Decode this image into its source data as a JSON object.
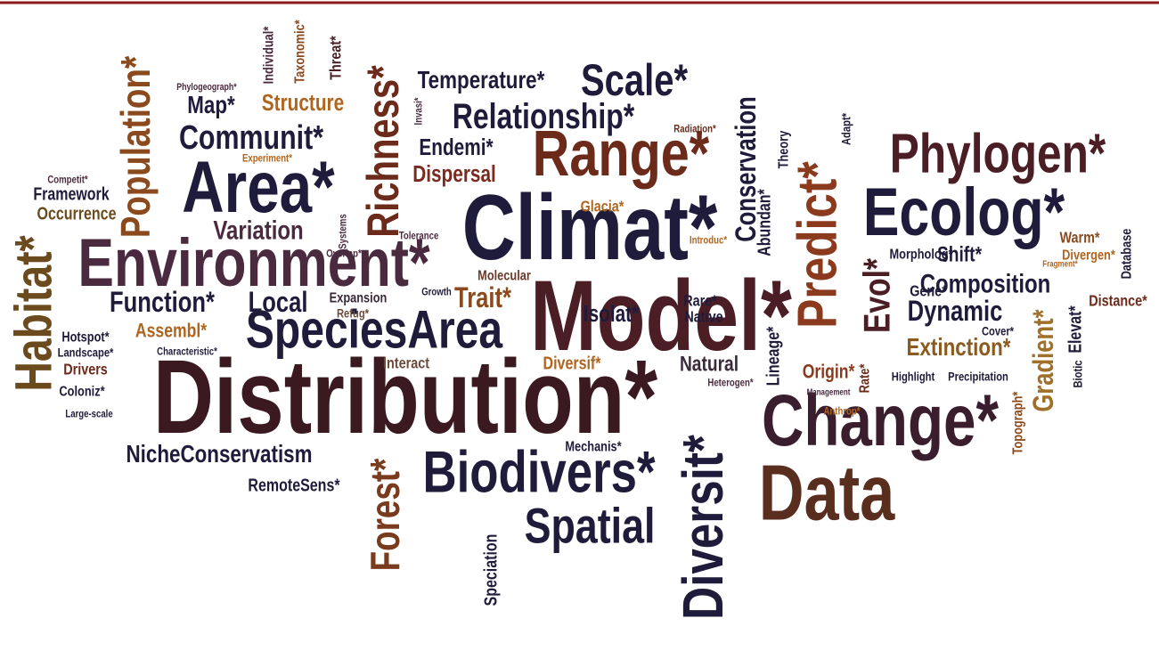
{
  "words": [
    "Distribution*",
    "Climat*",
    "Model*",
    "Environment*",
    "SpeciesArea",
    "Area*",
    "Range*",
    "Phylogen*",
    "Ecolog*",
    "Change*",
    "Data",
    "Biodivers*",
    "Spatial",
    "Diversit*",
    "Predict*",
    "Habitat*",
    "Population*",
    "Richness*",
    "Forest*",
    "Conservation",
    "Evol*",
    "Gradient*",
    "Scale*",
    "Temperature*",
    "Relationship*",
    "Communit*",
    "Map*",
    "Structure",
    "Endemi*",
    "Dispersal",
    "Variation",
    "Function*",
    "Local",
    "Trait*",
    "Isolat*",
    "Composition",
    "Dynamic",
    "Extinction*",
    "Shift*",
    "NicheConservatism",
    "RemoteSens*",
    "Mechanis*",
    "Natural",
    "Origin*",
    "Interact",
    "Diversif*",
    "Assembl*",
    "Framework",
    "Occurrence",
    "Hotspot*",
    "Landscape*",
    "Drivers",
    "Coloniz*",
    "Large-scale",
    "Competit*",
    "Speciation",
    "Lineage*",
    "Abundan*",
    "Topograph*",
    "Elevat*",
    "Database",
    "Distance*",
    "Warm*",
    "Divergen*",
    "Gene*",
    "Morpholog*",
    "Rare*",
    "Native",
    "Molecular",
    "Expansion",
    "Refug*",
    "Glacia*",
    "Individual*",
    "Taxonomic*",
    "Threat*",
    "Highlight",
    "Precipitation",
    "Heterogen*",
    "Rate*",
    "Theory",
    "Adapt*",
    "Radiation*",
    "Anthrop*",
    "Cover*",
    "Introduc*",
    "Experiment*",
    "Phylogeograph*",
    "Invasi*",
    "Growth",
    "Overlap*",
    "Tolerance",
    "Characteristic*",
    "Biotic",
    "Management",
    "Fragment*",
    "Systems"
  ]
}
